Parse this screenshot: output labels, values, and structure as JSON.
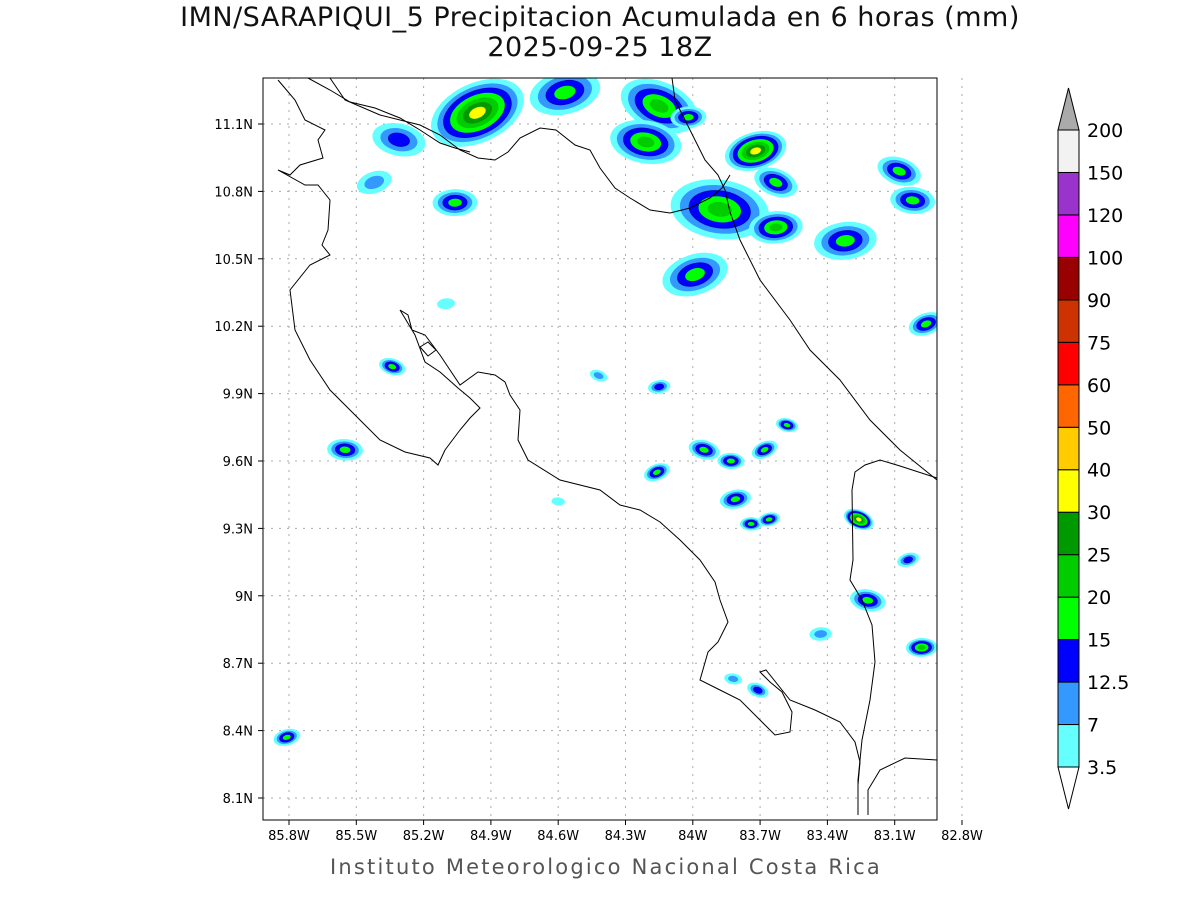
{
  "title": "IMN/SARAPIQUI_5 Precipitacion Acumulada en 6 horas (mm)",
  "subtitle": "2025-09-25 18Z",
  "footer": "Instituto Meteorologico Nacional Costa Rica",
  "chart_data": {
    "type": "heatmap",
    "variable": "6-hour accumulated precipitation",
    "units": "mm",
    "lon_range": [
      -85.92,
      -82.6
    ],
    "lat_range": [
      8.0,
      11.3
    ],
    "x_ticks": [
      "85.8W",
      "85.5W",
      "85.2W",
      "84.9W",
      "84.6W",
      "84.3W",
      "84W",
      "83.7W",
      "83.4W",
      "83.1W",
      "82.8W"
    ],
    "x_tick_values": [
      -85.8,
      -85.5,
      -85.2,
      -84.9,
      -84.6,
      -84.3,
      -84.0,
      -83.7,
      -83.4,
      -83.1,
      -82.8
    ],
    "y_ticks": [
      "11.1N",
      "10.8N",
      "10.5N",
      "10.2N",
      "9.9N",
      "9.6N",
      "9.3N",
      "9N",
      "8.7N",
      "8.4N",
      "8.1N"
    ],
    "y_tick_values": [
      11.1,
      10.8,
      10.5,
      10.2,
      9.9,
      9.6,
      9.3,
      9.0,
      8.7,
      8.4,
      8.1
    ],
    "grid": true,
    "colorbar": {
      "levels": [
        "3.5",
        "7",
        "12.5",
        "15",
        "20",
        "25",
        "30",
        "40",
        "50",
        "60",
        "75",
        "90",
        "100",
        "120",
        "150",
        "200"
      ],
      "colors": [
        "#66ffff",
        "#3399ff",
        "#0000ff",
        "#00ff00",
        "#00cc00",
        "#009900",
        "#ffff00",
        "#ffcc00",
        "#ff6600",
        "#ff0000",
        "#cc3300",
        "#990000",
        "#ff00ff",
        "#9933cc",
        "#f2f2f2"
      ],
      "over_color": "#aaaaaa",
      "under_color": "#ffffff"
    },
    "precip_cells": [
      {
        "lon": -84.96,
        "lat": 11.15,
        "max_mm": 32,
        "spread": 0.22
      },
      {
        "lon": -85.31,
        "lat": 11.03,
        "max_mm": 13,
        "spread": 0.12
      },
      {
        "lon": -85.06,
        "lat": 10.75,
        "max_mm": 16,
        "spread": 0.1
      },
      {
        "lon": -84.57,
        "lat": 11.24,
        "max_mm": 18,
        "spread": 0.16
      },
      {
        "lon": -84.15,
        "lat": 11.18,
        "max_mm": 20,
        "spread": 0.18
      },
      {
        "lon": -84.21,
        "lat": 11.02,
        "max_mm": 20,
        "spread": 0.16
      },
      {
        "lon": -84.02,
        "lat": 11.13,
        "max_mm": 15.5,
        "spread": 0.08
      },
      {
        "lon": -83.72,
        "lat": 10.98,
        "max_mm": 31,
        "spread": 0.14
      },
      {
        "lon": -83.63,
        "lat": 10.84,
        "max_mm": 16,
        "spread": 0.1
      },
      {
        "lon": -83.88,
        "lat": 10.72,
        "max_mm": 22,
        "spread": 0.22
      },
      {
        "lon": -83.63,
        "lat": 10.64,
        "max_mm": 20,
        "spread": 0.12
      },
      {
        "lon": -83.99,
        "lat": 10.43,
        "max_mm": 17,
        "spread": 0.15
      },
      {
        "lon": -83.08,
        "lat": 10.89,
        "max_mm": 17,
        "spread": 0.1
      },
      {
        "lon": -83.02,
        "lat": 10.76,
        "max_mm": 18,
        "spread": 0.1
      },
      {
        "lon": -83.32,
        "lat": 10.58,
        "max_mm": 15.5,
        "spread": 0.14
      },
      {
        "lon": -82.96,
        "lat": 10.21,
        "max_mm": 17,
        "spread": 0.08
      },
      {
        "lon": -85.34,
        "lat": 10.02,
        "max_mm": 16,
        "spread": 0.06
      },
      {
        "lon": -85.55,
        "lat": 9.65,
        "max_mm": 17,
        "spread": 0.08
      },
      {
        "lon": -84.15,
        "lat": 9.93,
        "max_mm": 13,
        "spread": 0.05
      },
      {
        "lon": -84.16,
        "lat": 9.55,
        "max_mm": 16,
        "spread": 0.06
      },
      {
        "lon": -83.95,
        "lat": 9.65,
        "max_mm": 16,
        "spread": 0.07
      },
      {
        "lon": -83.83,
        "lat": 9.6,
        "max_mm": 15.5,
        "spread": 0.06
      },
      {
        "lon": -83.81,
        "lat": 9.43,
        "max_mm": 17,
        "spread": 0.07
      },
      {
        "lon": -83.68,
        "lat": 9.65,
        "max_mm": 15.5,
        "spread": 0.06
      },
      {
        "lon": -83.58,
        "lat": 9.76,
        "max_mm": 16,
        "spread": 0.05
      },
      {
        "lon": -83.74,
        "lat": 9.32,
        "max_mm": 16,
        "spread": 0.05
      },
      {
        "lon": -83.66,
        "lat": 9.34,
        "max_mm": 15.5,
        "spread": 0.05
      },
      {
        "lon": -83.26,
        "lat": 9.34,
        "max_mm": 31,
        "spread": 0.07
      },
      {
        "lon": -83.22,
        "lat": 8.98,
        "max_mm": 16,
        "spread": 0.08
      },
      {
        "lon": -82.98,
        "lat": 8.77,
        "max_mm": 20,
        "spread": 0.07
      },
      {
        "lon": -85.81,
        "lat": 8.37,
        "max_mm": 17,
        "spread": 0.06
      },
      {
        "lon": -83.71,
        "lat": 8.58,
        "max_mm": 13,
        "spread": 0.05
      },
      {
        "lon": -83.82,
        "lat": 8.63,
        "max_mm": 8,
        "spread": 0.04
      },
      {
        "lon": -83.43,
        "lat": 8.83,
        "max_mm": 10,
        "spread": 0.05
      },
      {
        "lon": -83.04,
        "lat": 9.16,
        "max_mm": 13,
        "spread": 0.05
      },
      {
        "lon": -84.42,
        "lat": 9.98,
        "max_mm": 8,
        "spread": 0.04
      },
      {
        "lon": -84.6,
        "lat": 9.42,
        "max_mm": 5,
        "spread": 0.03
      },
      {
        "lon": -85.1,
        "lat": 10.3,
        "max_mm": 5,
        "spread": 0.04
      },
      {
        "lon": -85.42,
        "lat": 10.84,
        "max_mm": 8,
        "spread": 0.08
      }
    ]
  }
}
